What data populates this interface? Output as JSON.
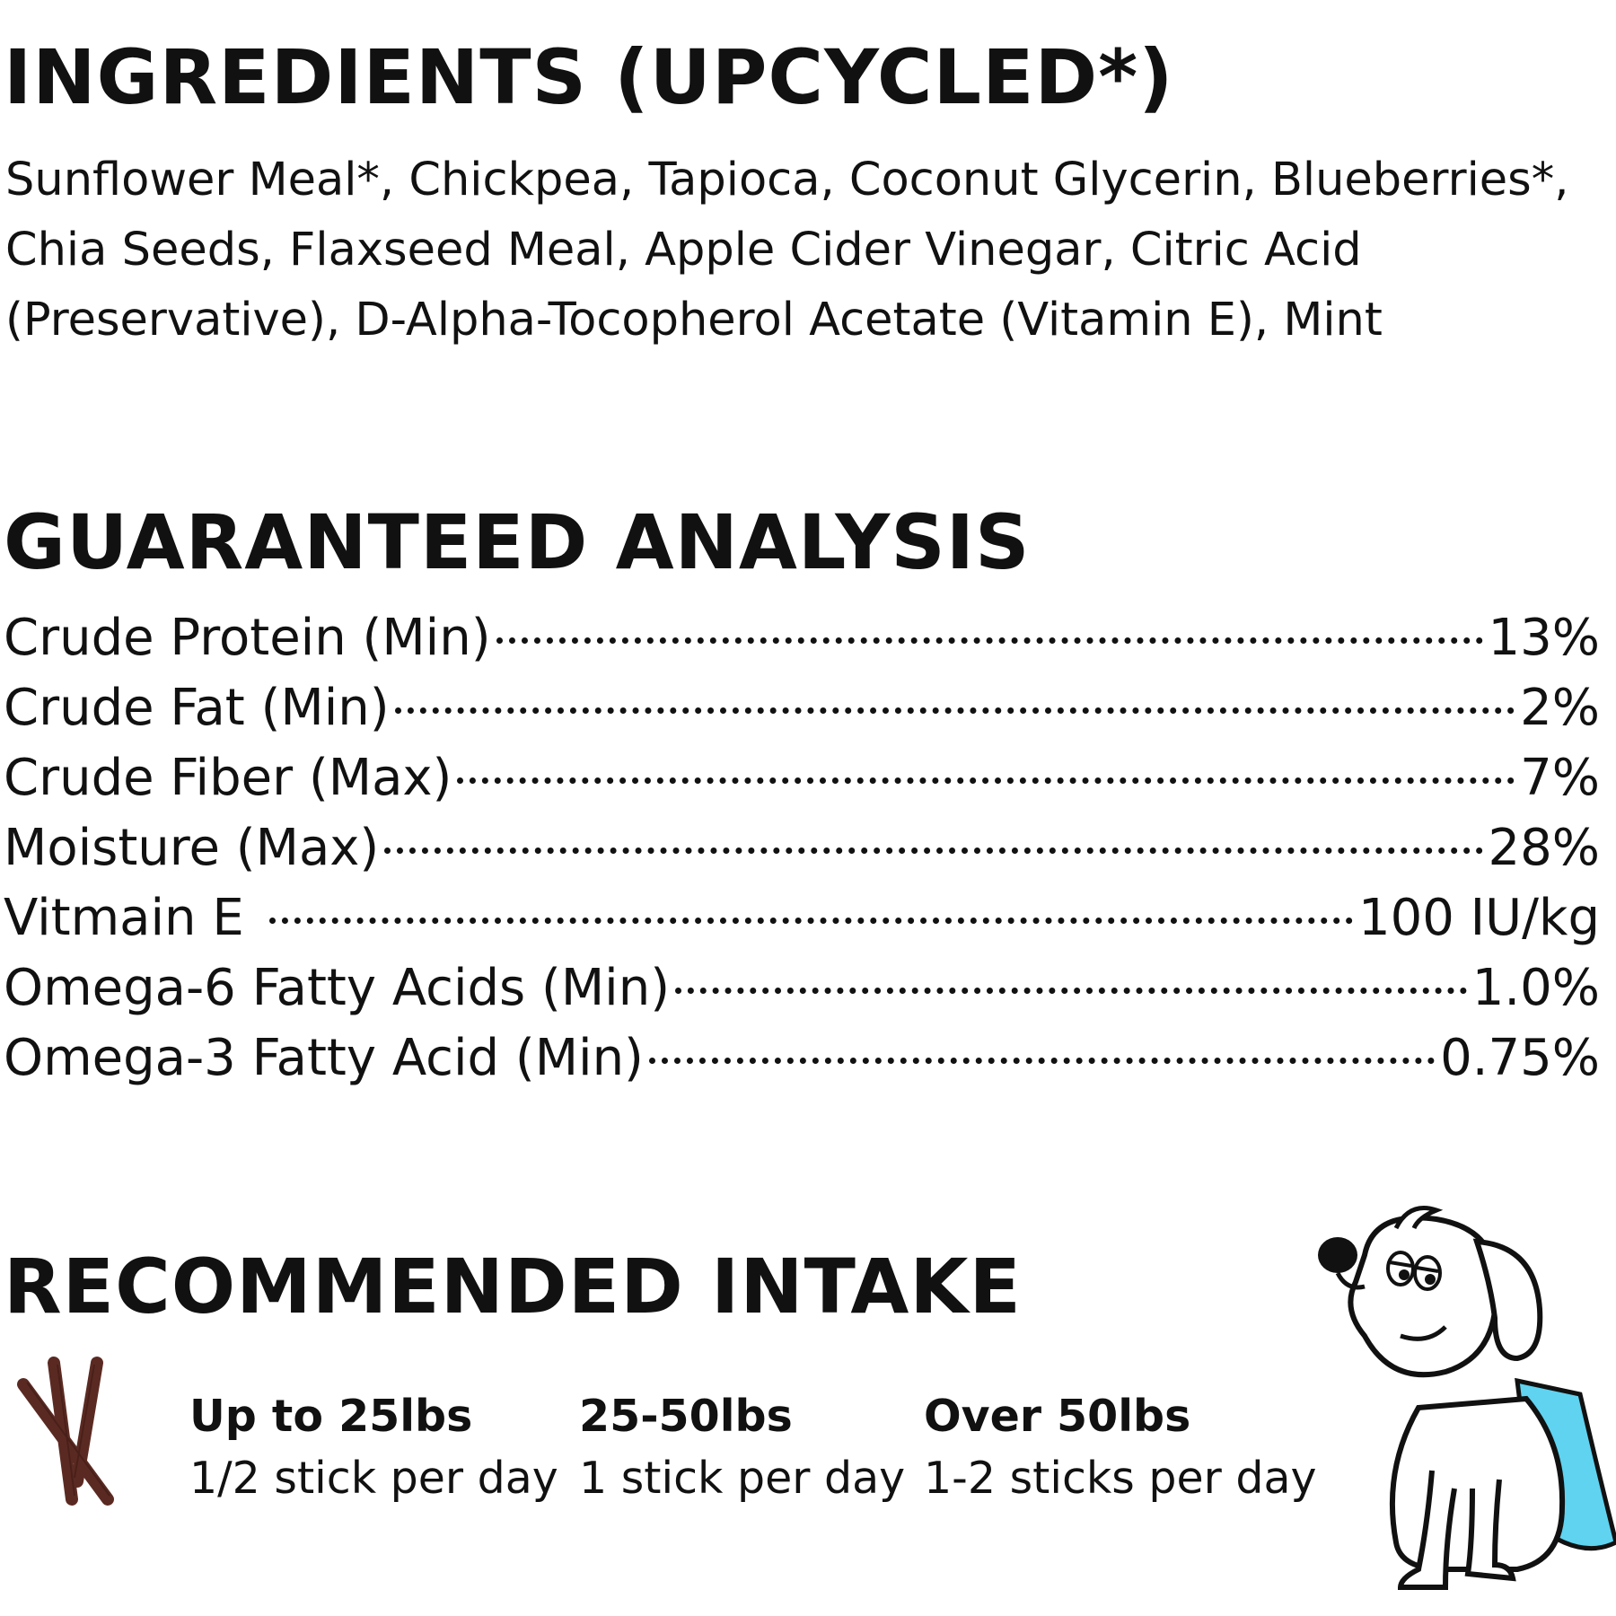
{
  "ingredients": {
    "heading": "INGREDIENTS (UPCYCLED*)",
    "text": "Sunflower Meal*, Chickpea, Tapioca, Coconut Glycerin, Blueberries*, Chia Seeds, Flaxseed Meal, Apple Cider Vinegar, Citric Acid (Preservative), D-Alpha-Tocopherol Acetate (Vitamin E), Mint"
  },
  "analysis": {
    "heading": "GUARANTEED ANALYSIS",
    "rows": [
      {
        "label": "Crude Protein (Min)",
        "value": "13%"
      },
      {
        "label": "Crude Fat (Min)",
        "value": "2%"
      },
      {
        "label": "Crude Fiber (Max)",
        "value": "7%"
      },
      {
        "label": "Moisture (Max)",
        "value": "28%"
      },
      {
        "label": "Vitmain E",
        "value": "100 IU/kg"
      },
      {
        "label": "Omega-6 Fatty Acids (Min)",
        "value": "1.0%"
      },
      {
        "label": "Omega-3 Fatty Acid (Min)",
        "value": "0.75%"
      }
    ]
  },
  "intake": {
    "heading": "RECOMMENDED INTAKE",
    "options": [
      {
        "weight": "Up to 25lbs",
        "amount": "1/2 stick per day"
      },
      {
        "weight": "25-50lbs",
        "amount": "1 stick per day"
      },
      {
        "weight": "Over 50lbs",
        "amount": "1-2 sticks per day"
      }
    ]
  },
  "icons": {
    "sticks": "chew-sticks-icon",
    "dog": "dog-illustration"
  },
  "colors": {
    "text": "#111111",
    "stick": "#5a2a22",
    "cape": "#5fd3f0"
  }
}
